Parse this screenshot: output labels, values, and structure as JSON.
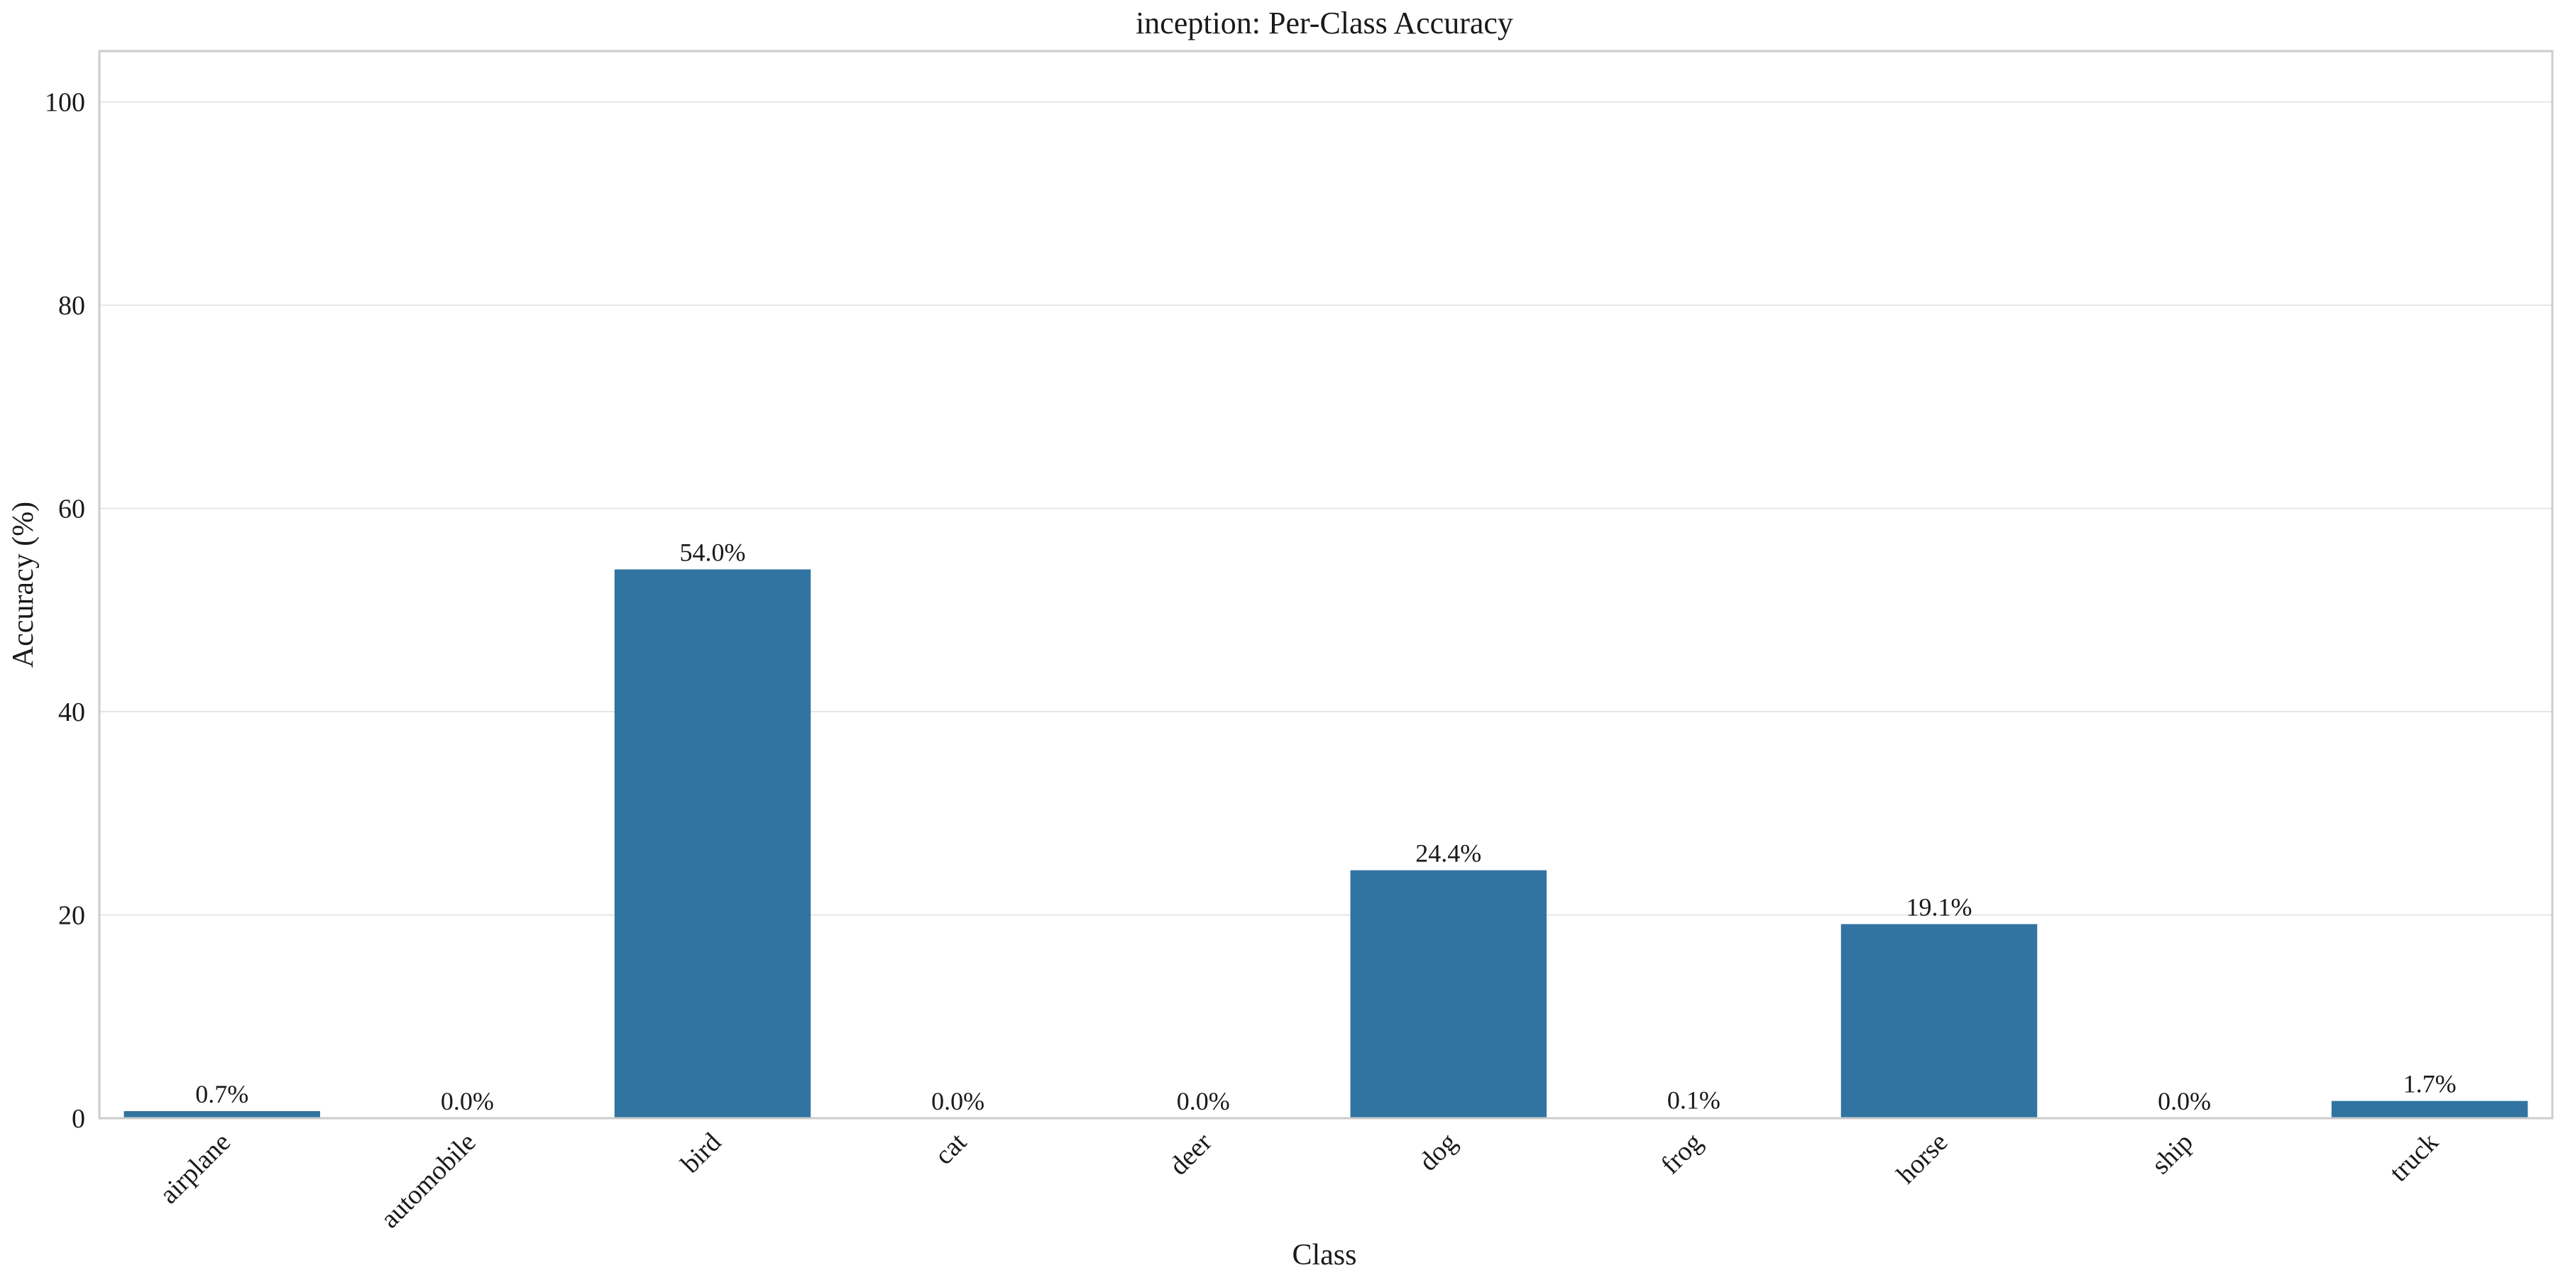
{
  "chart_data": {
    "type": "bar",
    "title": "inception: Per-Class Accuracy",
    "xlabel": "Class",
    "ylabel": "Accuracy (%)",
    "categories": [
      "airplane",
      "automobile",
      "bird",
      "cat",
      "deer",
      "dog",
      "frog",
      "horse",
      "ship",
      "truck"
    ],
    "values": [
      0.7,
      0.0,
      54.0,
      0.0,
      0.0,
      24.4,
      0.1,
      19.1,
      0.0,
      1.7
    ],
    "value_labels": [
      "0.7%",
      "0.0%",
      "54.0%",
      "0.0%",
      "0.0%",
      "24.4%",
      "0.1%",
      "19.1%",
      "0.0%",
      "1.7%"
    ],
    "ylim": [
      0,
      105
    ],
    "yticks": [
      0,
      20,
      40,
      60,
      80,
      100
    ],
    "ytick_labels": [
      "0",
      "20",
      "40",
      "60",
      "80",
      "100"
    ],
    "grid": "horizontal",
    "bar_color": "#3274a1",
    "legend": "none"
  }
}
